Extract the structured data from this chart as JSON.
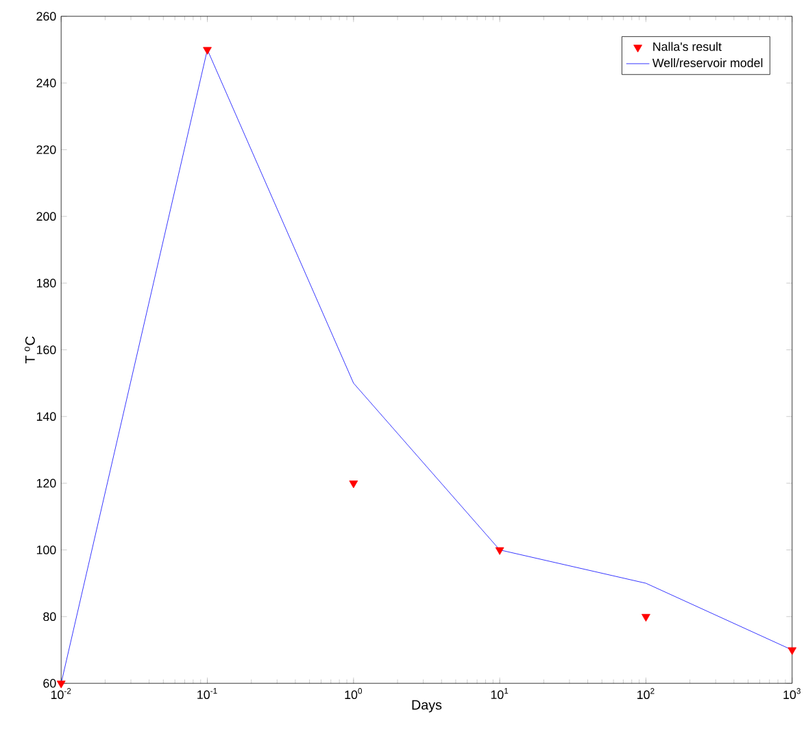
{
  "chart_data": {
    "type": "line",
    "xlabel": "Days",
    "ylabel": "T $^{o}$C",
    "log": "x",
    "xlim": [
      0.01,
      1000
    ],
    "ylim": [
      60,
      260
    ],
    "xticks": [
      {
        "value": 0.01,
        "label": "10$^{-2}$"
      },
      {
        "value": 0.1,
        "label": "10$^{-1}$"
      },
      {
        "value": 1,
        "label": "10$^{0}$"
      },
      {
        "value": 10,
        "label": "10$^{1}$"
      },
      {
        "value": 100,
        "label": "10$^{2}$"
      },
      {
        "value": 1000,
        "label": "10$^{3}$"
      }
    ],
    "yticks": [
      60,
      80,
      100,
      120,
      140,
      160,
      180,
      200,
      220,
      240,
      260
    ],
    "legend": "top right",
    "series": [
      {
        "name": "Nalla's result",
        "type": "scatter",
        "marker": "triangle",
        "color": "#ff0000",
        "x": [
          0.01,
          0.1,
          1,
          10,
          100,
          1000
        ],
        "values": [
          60,
          250,
          120,
          100,
          80,
          70
        ]
      },
      {
        "name": "Well/reservoir model",
        "marker": "none",
        "color": "#0000ff",
        "x": [
          0.01,
          0.1,
          1,
          10,
          100,
          1000
        ],
        "values": [
          60,
          250,
          150,
          100,
          90,
          70
        ]
      }
    ]
  }
}
